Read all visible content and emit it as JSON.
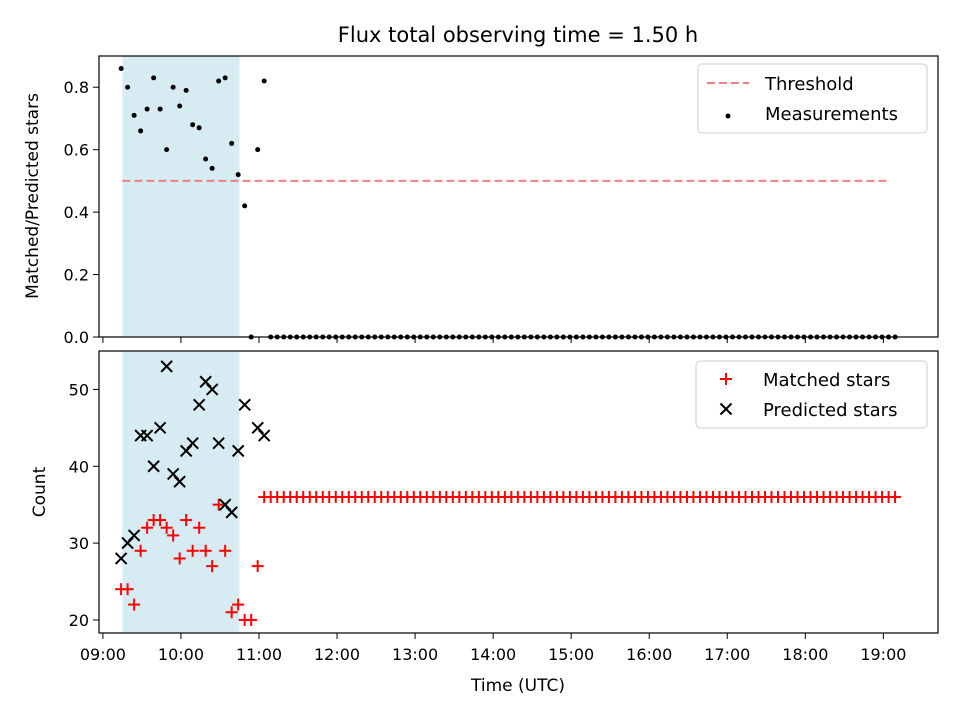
{
  "chart_data": [
    {
      "type": "scatter",
      "title": "Flux total observing time = 1.50 h",
      "xlabel": "",
      "ylabel": "Matched/Predicted stars",
      "xlim": [
        "08:57",
        "19:42"
      ],
      "ylim": [
        0,
        0.9
      ],
      "yticks": [
        "0.0",
        "0.2",
        "0.4",
        "0.6",
        "0.8"
      ],
      "observing_window": [
        "09:15",
        "10:45"
      ],
      "legend_position": "top-right",
      "threshold": {
        "name": "Threshold",
        "value": 0.5,
        "x_range": [
          "09:15",
          "19:05"
        ],
        "color": "#f08080",
        "style": "dashed"
      },
      "series": [
        {
          "name": "Measurements",
          "marker": "dot",
          "color": "#000000",
          "points": [
            [
              "09:14",
              0.86
            ],
            [
              "09:19",
              0.8
            ],
            [
              "09:24",
              0.71
            ],
            [
              "09:29",
              0.66
            ],
            [
              "09:34",
              0.73
            ],
            [
              "09:39",
              0.83
            ],
            [
              "09:44",
              0.73
            ],
            [
              "09:49",
              0.6
            ],
            [
              "09:54",
              0.8
            ],
            [
              "09:59",
              0.74
            ],
            [
              "10:04",
              0.79
            ],
            [
              "10:09",
              0.68
            ],
            [
              "10:14",
              0.67
            ],
            [
              "10:19",
              0.57
            ],
            [
              "10:24",
              0.54
            ],
            [
              "10:29",
              0.82
            ],
            [
              "10:34",
              0.83
            ],
            [
              "10:39",
              0.62
            ],
            [
              "10:44",
              0.52
            ],
            [
              "10:49",
              0.42
            ],
            [
              "10:54",
              0.0
            ],
            [
              "10:59",
              0.6
            ],
            [
              "11:04",
              0.82
            ]
          ],
          "zero_points_from": "11:09",
          "zero_points_to": "19:09",
          "zero_points_step_min": 5
        }
      ]
    },
    {
      "type": "scatter",
      "title": "",
      "xlabel": "Time (UTC)",
      "ylabel": "Count",
      "xlim": [
        "08:57",
        "19:42"
      ],
      "ylim": [
        18.3,
        55
      ],
      "yticks": [
        "20",
        "30",
        "40",
        "50"
      ],
      "xticks": [
        "09:00",
        "10:00",
        "11:00",
        "12:00",
        "13:00",
        "14:00",
        "15:00",
        "16:00",
        "17:00",
        "18:00",
        "19:00"
      ],
      "observing_window": [
        "09:15",
        "10:45"
      ],
      "legend_position": "top-right",
      "series": [
        {
          "name": "Matched stars",
          "marker": "plus",
          "color": "#ff0000",
          "points": [
            [
              "09:14",
              24
            ],
            [
              "09:19",
              24
            ],
            [
              "09:24",
              22
            ],
            [
              "09:29",
              29
            ],
            [
              "09:34",
              32
            ],
            [
              "09:39",
              33
            ],
            [
              "09:44",
              33
            ],
            [
              "09:49",
              32
            ],
            [
              "09:54",
              31
            ],
            [
              "09:59",
              28
            ],
            [
              "10:04",
              33
            ],
            [
              "10:09",
              29
            ],
            [
              "10:14",
              32
            ],
            [
              "10:19",
              29
            ],
            [
              "10:24",
              27
            ],
            [
              "10:29",
              35
            ],
            [
              "10:34",
              29
            ],
            [
              "10:39",
              21
            ],
            [
              "10:44",
              22
            ],
            [
              "10:49",
              20
            ],
            [
              "10:54",
              20
            ],
            [
              "10:59",
              27
            ]
          ],
          "constant_points_from": "11:04",
          "constant_points_to": "19:09",
          "constant_points_step_min": 5,
          "constant_value": 36
        },
        {
          "name": "Predicted stars",
          "marker": "x",
          "color": "#000000",
          "points": [
            [
              "09:14",
              28
            ],
            [
              "09:19",
              30
            ],
            [
              "09:24",
              31
            ],
            [
              "09:29",
              44
            ],
            [
              "09:34",
              44
            ],
            [
              "09:39",
              40
            ],
            [
              "09:44",
              45
            ],
            [
              "09:49",
              53
            ],
            [
              "09:54",
              39
            ],
            [
              "09:59",
              38
            ],
            [
              "10:04",
              42
            ],
            [
              "10:09",
              43
            ],
            [
              "10:14",
              48
            ],
            [
              "10:19",
              51
            ],
            [
              "10:24",
              50
            ],
            [
              "10:29",
              43
            ],
            [
              "10:34",
              35
            ],
            [
              "10:39",
              34
            ],
            [
              "10:44",
              42
            ],
            [
              "10:49",
              48
            ],
            [
              "10:59",
              45
            ],
            [
              "11:04",
              44
            ]
          ]
        }
      ]
    }
  ]
}
